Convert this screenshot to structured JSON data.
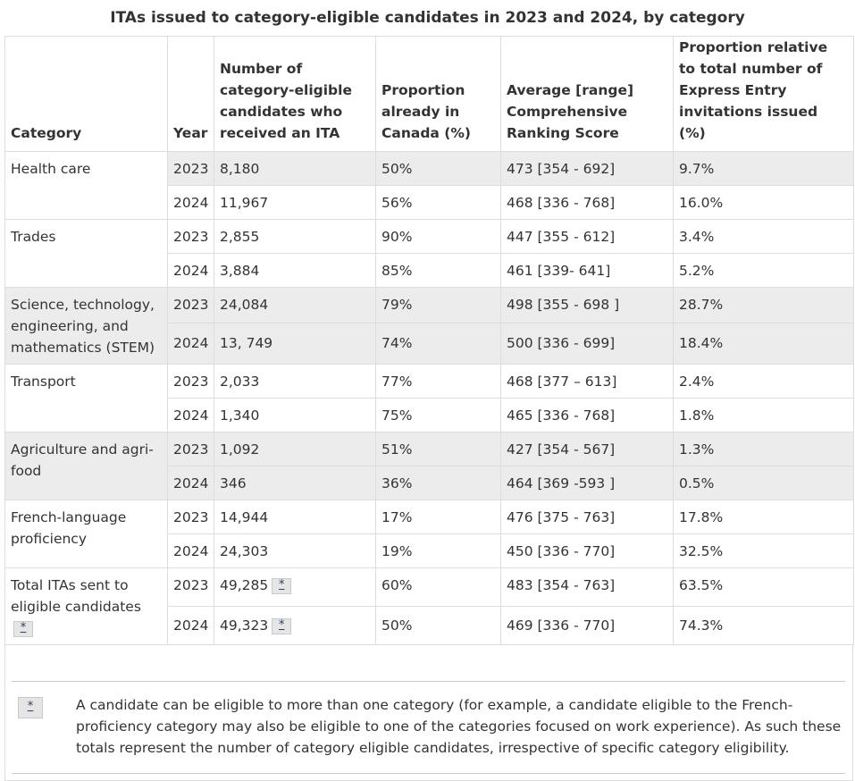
{
  "caption": "ITAs issued to category-eligible candidates in 2023 and 2024, by category",
  "headers": {
    "category": "Category",
    "year": "Year",
    "itas": "Number of category-eligible candidates who received an ITA",
    "in_canada": "Proportion already in Canada (%)",
    "crs": "Average [range] Comprehensive Ranking Score",
    "proportion": "Proportion relative to total number of Express Entry invitations issued (%)"
  },
  "groups": [
    {
      "category": "Health care",
      "rows": [
        {
          "year": "2023",
          "itas": "8,180",
          "in_canada": "50%",
          "crs": "473 [354 - 692]",
          "proportion": "9.7%"
        },
        {
          "year": "2024",
          "itas": "11,967",
          "in_canada": "56%",
          "crs": "468 [336 - 768]",
          "proportion": "16.0%"
        }
      ]
    },
    {
      "category": "Trades",
      "rows": [
        {
          "year": "2023",
          "itas": "2,855",
          "in_canada": "90%",
          "crs": "447 [355 - 612]",
          "proportion": "3.4%"
        },
        {
          "year": "2024",
          "itas": "3,884",
          "in_canada": "85%",
          "crs": "461 [339- 641]",
          "proportion": "5.2%"
        }
      ]
    },
    {
      "category": "Science, technology, engineering, and mathematics (STEM)",
      "rows": [
        {
          "year": "2023",
          "itas": "24,084",
          "in_canada": "79%",
          "crs": "498 [355 - 698 ]",
          "proportion": "28.7%"
        },
        {
          "year": "2024",
          "itas": "13, 749",
          "in_canada": "74%",
          "crs": "500 [336 - 699]",
          "proportion": "18.4%"
        }
      ]
    },
    {
      "category": "Transport",
      "rows": [
        {
          "year": "2023",
          "itas": "2,033",
          "in_canada": "77%",
          "crs": "468 [377 – 613]",
          "proportion": "2.4%"
        },
        {
          "year": "2024",
          "itas": "1,340",
          "in_canada": "75%",
          "crs": "465 [336  - 768]",
          "proportion": "1.8%"
        }
      ]
    },
    {
      "category": "Agriculture and agri-food",
      "rows": [
        {
          "year": "2023",
          "itas": "1,092",
          "in_canada": "51%",
          "crs": "427 [354 - 567]",
          "proportion": "1.3%"
        },
        {
          "year": "2024",
          "itas": "346",
          "in_canada": "36%",
          "crs": "464 [369 -593 ]",
          "proportion": "0.5%"
        }
      ]
    },
    {
      "category": "French-language proficiency",
      "rows": [
        {
          "year": "2023",
          "itas": "14,944",
          "in_canada": "17%",
          "crs": "476 [375 - 763]",
          "proportion": "17.8%"
        },
        {
          "year": "2024",
          "itas": "24,303",
          "in_canada": "19%",
          "crs": "450 [336 - 770]",
          "proportion": "32.5%"
        }
      ]
    },
    {
      "category": "Total ITAs sent to eligible candidates",
      "rows": [
        {
          "year": "2023",
          "itas": "49,285",
          "in_canada": "60%",
          "crs": "483 [354 - 763]",
          "proportion": "63.5%"
        },
        {
          "year": "2024",
          "itas": "49,323",
          "in_canada": "50%",
          "crs": "469 [336 - 770]",
          "proportion": "74.3%"
        }
      ]
    }
  ],
  "footnote": {
    "marker": "*",
    "text": "A candidate can be eligible to more than one category (for example, a candidate eligible to the French-proficiency category may also be eligible to one of the categories focused on work experience). As such these totals represent the number of category eligible candidates, irrespective of specific category eligibility."
  }
}
